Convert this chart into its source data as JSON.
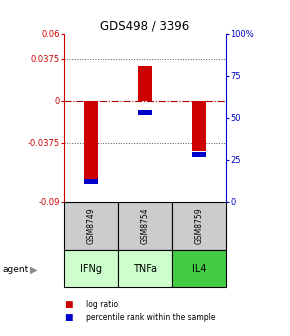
{
  "title": "GDS498 / 3396",
  "bar_data": [
    {
      "x": 0,
      "log_ratio": -0.072,
      "percentile": 12,
      "label": "GSM8749",
      "agent": "IFNg"
    },
    {
      "x": 1,
      "log_ratio": 0.031,
      "percentile": 53,
      "label": "GSM8754",
      "agent": "TNFa"
    },
    {
      "x": 2,
      "log_ratio": -0.045,
      "percentile": 28,
      "label": "GSM8759",
      "agent": "IL4"
    }
  ],
  "ylim_left": [
    -0.09,
    0.06
  ],
  "ylim_right": [
    0,
    100
  ],
  "left_ticks": [
    -0.09,
    -0.0375,
    0,
    0.0375,
    0.06
  ],
  "right_ticks": [
    0,
    25,
    50,
    75,
    100
  ],
  "left_tick_labels": [
    "-0.09",
    "-0.0375",
    "0",
    "0.0375",
    "0.06"
  ],
  "right_tick_labels": [
    "0",
    "25",
    "50",
    "75",
    "100%"
  ],
  "bar_color": "#cc0000",
  "percentile_color": "#0000cc",
  "bar_width": 0.25,
  "gsm_bg_color": "#cccccc",
  "agent_colors": {
    "IFNg": "#ccffcc",
    "TNFa": "#ccffcc",
    "IL4": "#44cc44"
  },
  "zero_line_color": "#aa0000",
  "dotted_line_color": "#555555",
  "left_axis_color": "#cc0000",
  "right_axis_color": "#0000cc",
  "legend_red_label": "log ratio",
  "legend_blue_label": "percentile rank within the sample",
  "agent_label": "agent"
}
